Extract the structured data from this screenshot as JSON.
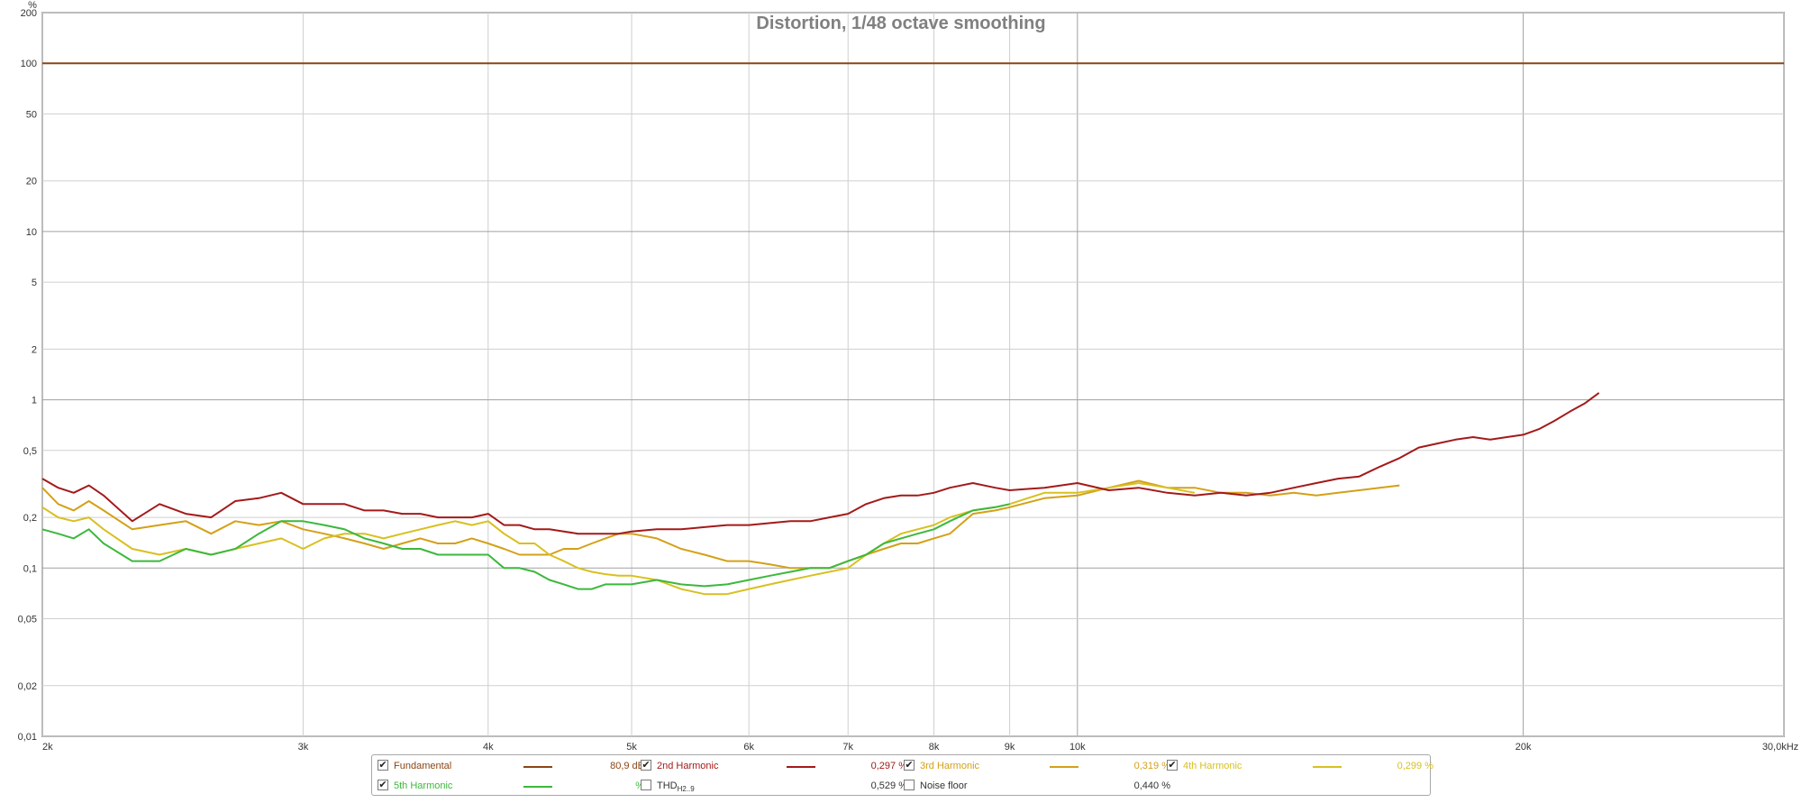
{
  "chart_data": {
    "type": "line",
    "title": "Distortion, 1/48 octave smoothing",
    "y_unit": "%",
    "x_unit": "kHz",
    "x_scale": "log",
    "y_scale": "log",
    "xlim": [
      2000,
      30000
    ],
    "ylim": [
      0.01,
      200
    ],
    "grid": true,
    "x_ticks": [
      {
        "value": 2000,
        "label": "2k"
      },
      {
        "value": 3000,
        "label": "3k"
      },
      {
        "value": 4000,
        "label": "4k"
      },
      {
        "value": 5000,
        "label": "5k"
      },
      {
        "value": 6000,
        "label": "6k"
      },
      {
        "value": 7000,
        "label": "7k"
      },
      {
        "value": 8000,
        "label": "8k"
      },
      {
        "value": 9000,
        "label": "9k"
      },
      {
        "value": 10000,
        "label": "10k"
      },
      {
        "value": 20000,
        "label": "20k"
      },
      {
        "value": 30000,
        "label": "30,0kHz"
      }
    ],
    "y_ticks": [
      {
        "value": 200,
        "label": "200"
      },
      {
        "value": 100,
        "label": "100"
      },
      {
        "value": 50,
        "label": "50"
      },
      {
        "value": 20,
        "label": "20"
      },
      {
        "value": 10,
        "label": "10"
      },
      {
        "value": 5,
        "label": "5"
      },
      {
        "value": 2,
        "label": "2"
      },
      {
        "value": 1,
        "label": "1"
      },
      {
        "value": 0.5,
        "label": "0,5"
      },
      {
        "value": 0.2,
        "label": "0,2"
      },
      {
        "value": 0.1,
        "label": "0,1"
      },
      {
        "value": 0.05,
        "label": "0,05"
      },
      {
        "value": 0.02,
        "label": "0,02"
      },
      {
        "value": 0.01,
        "label": "0,01"
      }
    ],
    "series": [
      {
        "name": "Fundamental",
        "color": "#8b4513",
        "x": [
          2000,
          30000
        ],
        "y": [
          100,
          100
        ]
      },
      {
        "name": "3rd Harmonic",
        "color": "#d4a017",
        "x": [
          2000,
          2050,
          2100,
          2150,
          2200,
          2300,
          2400,
          2500,
          2600,
          2700,
          2800,
          2900,
          3000,
          3100,
          3200,
          3300,
          3400,
          3500,
          3600,
          3700,
          3800,
          3900,
          4000,
          4100,
          4200,
          4300,
          4400,
          4500,
          4600,
          4700,
          4800,
          4900,
          5000,
          5200,
          5400,
          5600,
          5800,
          6000,
          6200,
          6400,
          6600,
          6800,
          7000,
          7200,
          7400,
          7600,
          7800,
          8000,
          8200,
          8500,
          8800,
          9000,
          9500,
          10000,
          10500,
          11000,
          11500,
          12000,
          12500,
          13000,
          13500,
          14000,
          14500,
          15000,
          15500,
          16000,
          16500
        ],
        "y": [
          0.3,
          0.24,
          0.22,
          0.25,
          0.22,
          0.17,
          0.18,
          0.19,
          0.16,
          0.19,
          0.18,
          0.19,
          0.17,
          0.16,
          0.15,
          0.14,
          0.13,
          0.14,
          0.15,
          0.14,
          0.14,
          0.15,
          0.14,
          0.13,
          0.12,
          0.12,
          0.12,
          0.13,
          0.13,
          0.14,
          0.15,
          0.16,
          0.16,
          0.15,
          0.13,
          0.12,
          0.11,
          0.11,
          0.105,
          0.1,
          0.1,
          0.1,
          0.11,
          0.12,
          0.13,
          0.14,
          0.14,
          0.15,
          0.16,
          0.21,
          0.22,
          0.23,
          0.26,
          0.27,
          0.3,
          0.33,
          0.3,
          0.3,
          0.28,
          0.28,
          0.27,
          0.28,
          0.27,
          0.28,
          0.29,
          0.3,
          0.31
        ]
      },
      {
        "name": "4th Harmonic",
        "color": "#d8c020",
        "x": [
          2000,
          2050,
          2100,
          2150,
          2200,
          2300,
          2400,
          2500,
          2600,
          2700,
          2800,
          2900,
          3000,
          3100,
          3200,
          3300,
          3400,
          3500,
          3600,
          3700,
          3800,
          3900,
          4000,
          4100,
          4200,
          4300,
          4400,
          4500,
          4600,
          4700,
          4800,
          4900,
          5000,
          5200,
          5400,
          5600,
          5800,
          6000,
          6200,
          6400,
          6600,
          6800,
          7000,
          7200,
          7400,
          7600,
          7800,
          8000,
          8200,
          8500,
          8800,
          9000,
          9500,
          10000,
          10500,
          11000,
          11500,
          12000
        ],
        "y": [
          0.23,
          0.2,
          0.19,
          0.2,
          0.17,
          0.13,
          0.12,
          0.13,
          0.12,
          0.13,
          0.14,
          0.15,
          0.13,
          0.15,
          0.16,
          0.16,
          0.15,
          0.16,
          0.17,
          0.18,
          0.19,
          0.18,
          0.19,
          0.16,
          0.14,
          0.14,
          0.12,
          0.11,
          0.1,
          0.095,
          0.092,
          0.09,
          0.09,
          0.085,
          0.075,
          0.07,
          0.07,
          0.075,
          0.08,
          0.085,
          0.09,
          0.095,
          0.1,
          0.12,
          0.14,
          0.16,
          0.17,
          0.18,
          0.2,
          0.22,
          0.23,
          0.24,
          0.28,
          0.28,
          0.3,
          0.32,
          0.3,
          0.28
        ]
      },
      {
        "name": "5th Harmonic",
        "color": "#3cb83c",
        "x": [
          2000,
          2050,
          2100,
          2150,
          2200,
          2300,
          2400,
          2500,
          2600,
          2700,
          2800,
          2900,
          3000,
          3100,
          3200,
          3300,
          3400,
          3500,
          3600,
          3700,
          3800,
          3900,
          4000,
          4100,
          4200,
          4300,
          4400,
          4500,
          4600,
          4700,
          4800,
          4900,
          5000,
          5200,
          5400,
          5600,
          5800,
          6000,
          6200,
          6400,
          6600,
          6800,
          7000,
          7200,
          7400,
          7600,
          7800,
          8000,
          8200,
          8500,
          8800,
          9000
        ],
        "y": [
          0.17,
          0.16,
          0.15,
          0.17,
          0.14,
          0.11,
          0.11,
          0.13,
          0.12,
          0.13,
          0.16,
          0.19,
          0.19,
          0.18,
          0.17,
          0.15,
          0.14,
          0.13,
          0.13,
          0.12,
          0.12,
          0.12,
          0.12,
          0.1,
          0.1,
          0.095,
          0.085,
          0.08,
          0.075,
          0.075,
          0.08,
          0.08,
          0.08,
          0.085,
          0.08,
          0.078,
          0.08,
          0.085,
          0.09,
          0.095,
          0.1,
          0.1,
          0.11,
          0.12,
          0.14,
          0.15,
          0.16,
          0.17,
          0.19,
          0.22,
          0.23,
          0.24
        ]
      },
      {
        "name": "2nd Harmonic",
        "color": "#a31a1a",
        "x": [
          2000,
          2050,
          2100,
          2150,
          2200,
          2300,
          2400,
          2500,
          2600,
          2700,
          2800,
          2900,
          3000,
          3100,
          3200,
          3300,
          3400,
          3500,
          3600,
          3700,
          3800,
          3900,
          4000,
          4100,
          4200,
          4300,
          4400,
          4500,
          4600,
          4700,
          4800,
          4900,
          5000,
          5200,
          5400,
          5600,
          5800,
          6000,
          6200,
          6400,
          6600,
          6800,
          7000,
          7200,
          7400,
          7600,
          7800,
          8000,
          8200,
          8500,
          8800,
          9000,
          9500,
          10000,
          10500,
          11000,
          11500,
          12000,
          12500,
          13000,
          13500,
          14000,
          14500,
          15000,
          15500,
          16000,
          16500,
          17000,
          17500,
          18000,
          18500,
          19000,
          19500,
          20000,
          20500,
          21000,
          21500,
          22000,
          22500
        ],
        "y": [
          0.34,
          0.3,
          0.28,
          0.31,
          0.27,
          0.19,
          0.24,
          0.21,
          0.2,
          0.25,
          0.26,
          0.28,
          0.24,
          0.24,
          0.24,
          0.22,
          0.22,
          0.21,
          0.21,
          0.2,
          0.2,
          0.2,
          0.21,
          0.18,
          0.18,
          0.17,
          0.17,
          0.165,
          0.16,
          0.16,
          0.16,
          0.16,
          0.165,
          0.17,
          0.17,
          0.175,
          0.18,
          0.18,
          0.185,
          0.19,
          0.19,
          0.2,
          0.21,
          0.24,
          0.26,
          0.27,
          0.27,
          0.28,
          0.3,
          0.32,
          0.3,
          0.29,
          0.3,
          0.32,
          0.29,
          0.3,
          0.28,
          0.27,
          0.28,
          0.27,
          0.28,
          0.3,
          0.32,
          0.34,
          0.35,
          0.4,
          0.45,
          0.52,
          0.55,
          0.58,
          0.6,
          0.58,
          0.6,
          0.62,
          0.67,
          0.75,
          0.85,
          0.95,
          1.1
        ]
      }
    ]
  },
  "legend": {
    "items": [
      {
        "key": "fundamental",
        "label": "Fundamental",
        "value": "80,9 dB",
        "checked": true,
        "color": "#8b4513"
      },
      {
        "key": "h2",
        "label": "2nd Harmonic",
        "value": "0,297 %",
        "checked": true,
        "color": "#a31a1a"
      },
      {
        "key": "h3",
        "label": "3rd Harmonic",
        "value": "0,319 %",
        "checked": true,
        "color": "#d4a017"
      },
      {
        "key": "h4",
        "label": "4th Harmonic",
        "value": "0,299 %",
        "checked": true,
        "color": "#d8c020"
      },
      {
        "key": "h5",
        "label": "5th Harmonic",
        "value": "%",
        "checked": true,
        "color": "#3cb83c"
      },
      {
        "key": "thd",
        "label": "THD",
        "label_sub": "H2..9",
        "value": "0,529 %",
        "checked": false,
        "color": "#333333"
      },
      {
        "key": "noise",
        "label": "Noise floor",
        "value": "0,440 %",
        "checked": false,
        "color": "#333333"
      }
    ]
  },
  "colors": {
    "title": "#808080",
    "grid": "#cfcfcf",
    "grid_major": "#a0a0a0",
    "frame": "#a8a8a8"
  }
}
